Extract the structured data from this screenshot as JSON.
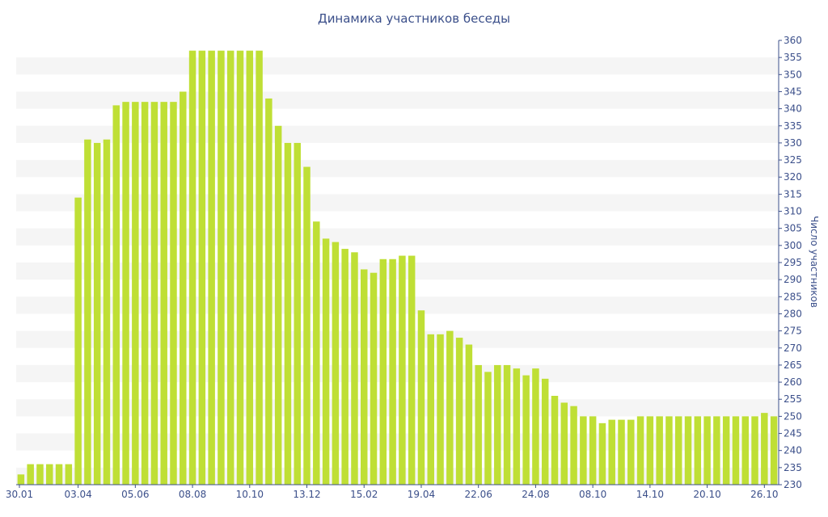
{
  "chart_data": {
    "type": "bar",
    "title": "Динамика участников беседы",
    "xlabel": "",
    "ylabel": "Число участников",
    "ylim": [
      230,
      360
    ],
    "ytick_step": 5,
    "y_axis_side": "right",
    "grid": "alternating horizontal bands",
    "bar_color": "#bfdf35",
    "band_color": "#f5f5f5",
    "axis_text_color": "#3b4f8a",
    "x_tick_labels": [
      {
        "index": 0,
        "label": "30.01"
      },
      {
        "index": 6,
        "label": "03.04"
      },
      {
        "index": 12,
        "label": "05.06"
      },
      {
        "index": 18,
        "label": "08.08"
      },
      {
        "index": 24,
        "label": "10.10"
      },
      {
        "index": 30,
        "label": "13.12"
      },
      {
        "index": 36,
        "label": "15.02"
      },
      {
        "index": 42,
        "label": "19.04"
      },
      {
        "index": 48,
        "label": "22.06"
      },
      {
        "index": 54,
        "label": "24.08"
      },
      {
        "index": 60,
        "label": "08.10"
      },
      {
        "index": 66,
        "label": "14.10"
      },
      {
        "index": 72,
        "label": "20.10"
      },
      {
        "index": 78,
        "label": "26.10"
      }
    ],
    "values": [
      233,
      236,
      236,
      236,
      236,
      236,
      314,
      331,
      330,
      331,
      341,
      342,
      342,
      342,
      342,
      342,
      342,
      345,
      357,
      357,
      357,
      357,
      357,
      357,
      357,
      357,
      343,
      335,
      330,
      330,
      323,
      307,
      302,
      301,
      299,
      298,
      293,
      292,
      296,
      296,
      297,
      297,
      281,
      274,
      274,
      275,
      273,
      271,
      265,
      263,
      265,
      265,
      264,
      262,
      264,
      261,
      256,
      254,
      253,
      250,
      250,
      248,
      249,
      249,
      249,
      250,
      250,
      250,
      250,
      250,
      250,
      250,
      250,
      250,
      250,
      250,
      250,
      250,
      251,
      250
    ]
  }
}
